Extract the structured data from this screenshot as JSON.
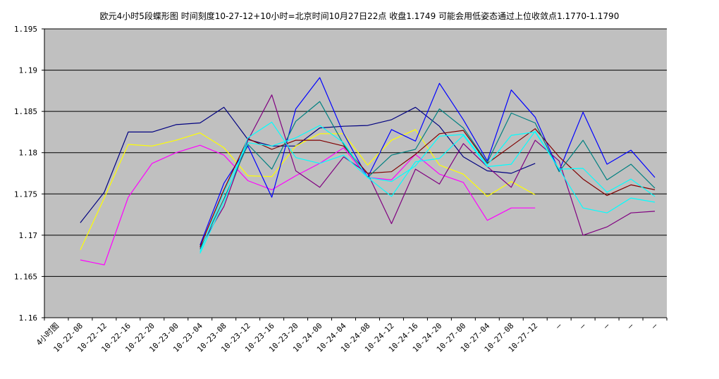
{
  "chart_data": {
    "type": "line",
    "title": "欧元4小时5段蝶形图 时间刻度10-27-12+10小时=北京时间10月27日22点 收盘1.1749 可能会用低姿态通过上位收敛点1.1770-1.1790",
    "ylim": [
      1.16,
      1.195
    ],
    "yticks": [
      "1.16",
      "1.165",
      "1.17",
      "1.175",
      "1.18",
      "1.185",
      "1.19",
      "1.195"
    ],
    "grid": true,
    "legend": "none",
    "categories": [
      "4小时图",
      "10-22-08",
      "10-22-12",
      "10-22-16",
      "10-22-20",
      "10-23-00",
      "10-23-04",
      "10-23-08",
      "10-23-12",
      "10-23-16",
      "10-23-20",
      "10-24-00",
      "10-24-04",
      "10-24-08",
      "10-24-12",
      "10-24-16",
      "10-24-20",
      "10-27-00",
      "10-27-04",
      "10-27-08",
      "10-27-12",
      "—",
      "—",
      "—",
      "—",
      "—"
    ],
    "background": "#c0c0c0",
    "series": [
      {
        "color": "#000080",
        "values": [
          null,
          1.1715,
          1.1752,
          1.1825,
          1.1825,
          1.1834,
          1.1836,
          1.1855,
          1.1816,
          1.1808,
          1.1808,
          1.183,
          1.1832,
          1.1833,
          1.184,
          1.1855,
          1.1832,
          1.1795,
          1.1778,
          1.1775,
          1.1787,
          null,
          null,
          null,
          null,
          null
        ]
      },
      {
        "color": "#ffff00",
        "values": [
          null,
          1.1682,
          1.1745,
          1.181,
          1.1808,
          1.1815,
          1.1824,
          1.1806,
          1.1772,
          1.1771,
          1.1808,
          1.1823,
          1.1823,
          1.1785,
          1.1815,
          1.1828,
          1.1785,
          1.1774,
          1.1747,
          1.1765,
          1.1749,
          null,
          null,
          null,
          null,
          null
        ]
      },
      {
        "color": "#ff00ff",
        "values": [
          null,
          1.167,
          1.1664,
          1.1746,
          1.1787,
          1.18,
          1.1809,
          1.1797,
          1.1766,
          1.1755,
          1.1772,
          1.1787,
          1.1806,
          1.177,
          1.1767,
          1.1798,
          1.1774,
          1.1764,
          1.1718,
          1.1733,
          1.1733,
          null,
          null,
          null,
          null,
          null
        ]
      },
      {
        "color": "#0000ff",
        "values": [
          null,
          null,
          null,
          null,
          null,
          null,
          1.1688,
          1.1763,
          1.1808,
          1.1746,
          1.1853,
          1.1891,
          1.1823,
          1.177,
          1.1828,
          1.1814,
          1.1884,
          1.184,
          1.179,
          1.1876,
          1.1843,
          1.1778,
          1.1849,
          1.1786,
          1.1803,
          1.177
        ]
      },
      {
        "color": "#800080",
        "values": [
          null,
          null,
          null,
          null,
          null,
          null,
          1.1685,
          1.1735,
          1.1815,
          1.187,
          1.1778,
          1.1758,
          1.1795,
          1.1775,
          1.1714,
          1.178,
          1.1762,
          1.1811,
          1.1783,
          1.1758,
          1.1815,
          1.179,
          1.17,
          1.171,
          1.1727,
          1.1729
        ]
      },
      {
        "color": "#800000",
        "values": [
          null,
          null,
          null,
          null,
          null,
          null,
          1.1686,
          1.1755,
          1.1817,
          1.1804,
          1.1815,
          1.1815,
          1.1808,
          1.1775,
          1.1777,
          1.1798,
          1.1823,
          1.1827,
          1.1787,
          1.1808,
          1.1829,
          1.1795,
          1.1768,
          1.1748,
          1.1761,
          1.1755
        ]
      },
      {
        "color": "#008080",
        "values": [
          null,
          null,
          null,
          null,
          null,
          null,
          1.1683,
          1.1744,
          1.181,
          1.178,
          1.1838,
          1.1862,
          1.181,
          1.177,
          1.1797,
          1.1804,
          1.1853,
          1.183,
          1.1788,
          1.1848,
          1.1836,
          1.1777,
          1.1815,
          1.1767,
          1.1786,
          1.1757
        ]
      },
      {
        "color": "#00ffff",
        "values": [
          null,
          null,
          null,
          null,
          null,
          null,
          1.1678,
          1.174,
          1.1818,
          1.1837,
          1.1794,
          1.1787,
          1.1797,
          1.177,
          1.1747,
          1.1789,
          1.1793,
          1.1821,
          1.1783,
          1.1786,
          1.1826,
          1.178,
          1.1733,
          1.1727,
          1.1745,
          1.174
        ]
      },
      {
        "color": "#00ffff",
        "values": [
          null,
          null,
          null,
          null,
          null,
          null,
          1.168,
          1.1752,
          1.1812,
          1.1808,
          1.1818,
          1.1833,
          1.1812,
          1.177,
          1.1765,
          1.1784,
          1.182,
          1.1822,
          1.1785,
          1.1821,
          1.1825,
          1.178,
          1.1781,
          1.1752,
          1.1768,
          1.1747
        ]
      }
    ]
  }
}
